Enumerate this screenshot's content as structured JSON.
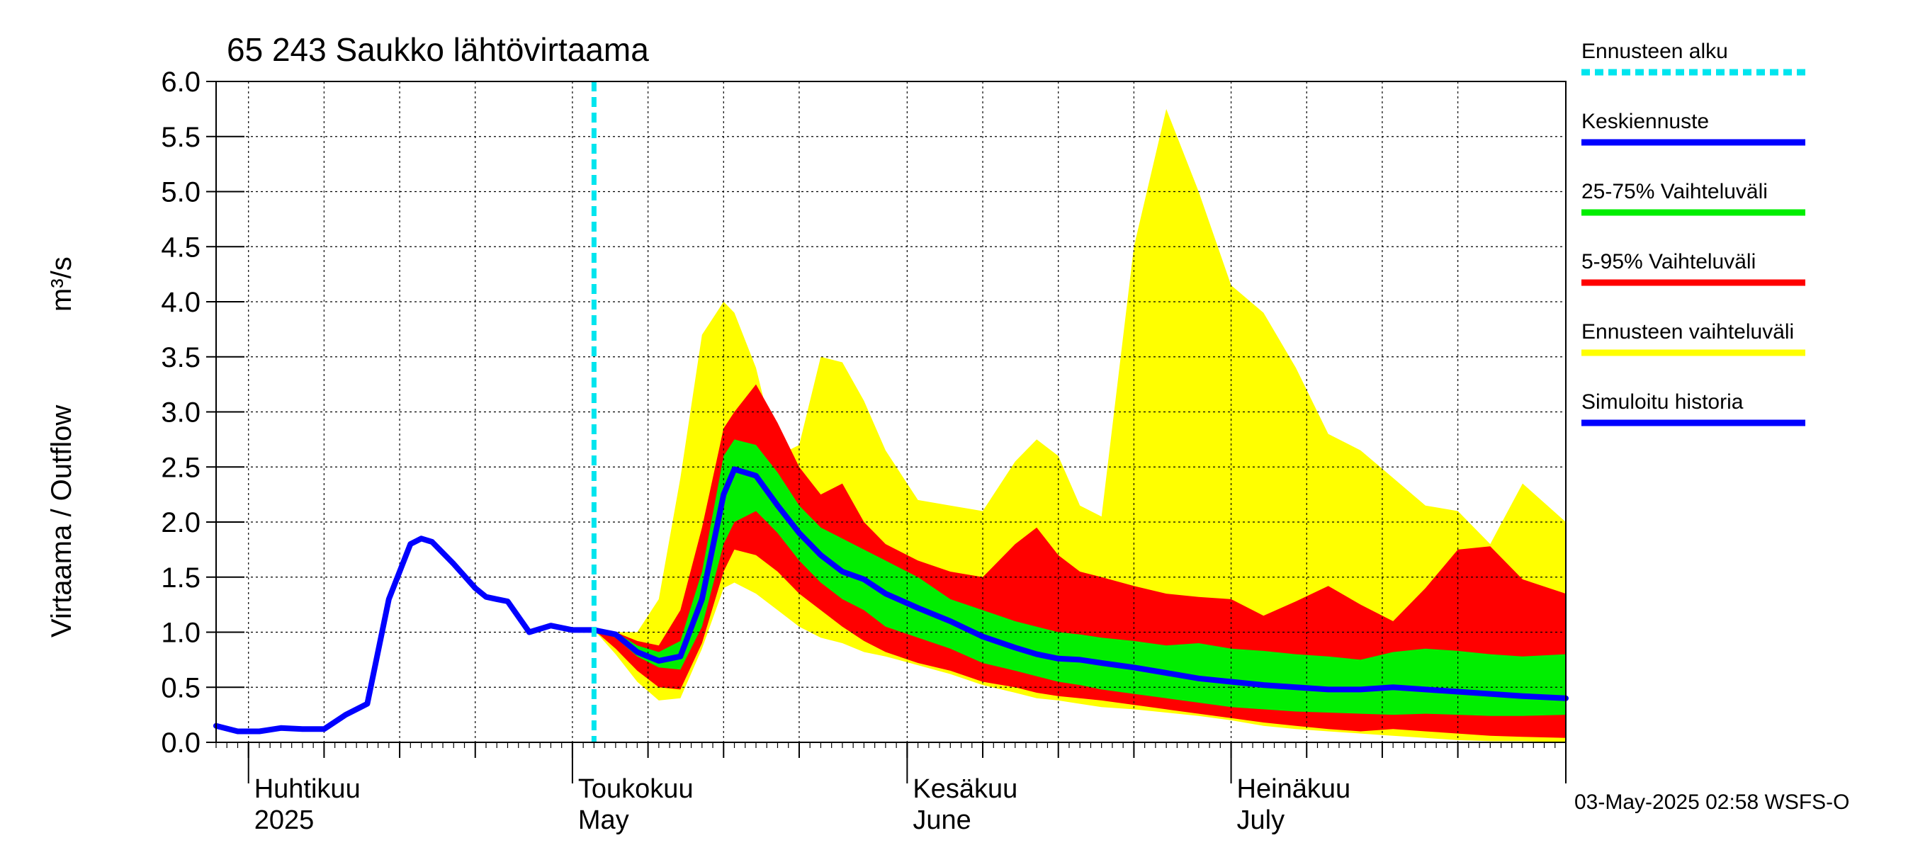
{
  "chart_data": {
    "type": "area",
    "title": "65 243 Saukko lähtövirtaama",
    "ylabel": "Virtaama / Outflow",
    "yunit": "m³/s",
    "ylim": [
      0,
      6
    ],
    "yticks": [
      "0.0",
      "0.5",
      "1.0",
      "1.5",
      "2.0",
      "2.5",
      "3.0",
      "3.5",
      "4.0",
      "4.5",
      "5.0",
      "5.5",
      "6.0"
    ],
    "xlim": [
      "2025-03-29",
      "2025-08-01"
    ],
    "x_tick_dates": [
      "2025-04-01",
      "2025-04-08",
      "2025-04-15",
      "2025-04-22",
      "2025-05-01",
      "2025-05-08",
      "2025-05-15",
      "2025-05-22",
      "2025-06-01",
      "2025-06-08",
      "2025-06-15",
      "2025-06-22",
      "2025-07-01",
      "2025-07-08",
      "2025-07-15",
      "2025-07-22",
      "2025-08-01"
    ],
    "month_boundaries": [
      "2025-04-01",
      "2025-05-01",
      "2025-06-01",
      "2025-07-01",
      "2025-08-01"
    ],
    "month_labels": [
      {
        "fi": "Huhtikuu",
        "en": "2025",
        "date": "2025-04-01"
      },
      {
        "fi": "Toukokuu",
        "en": "May",
        "date": "2025-05-01"
      },
      {
        "fi": "Kesäkuu",
        "en": "June",
        "date": "2025-06-01"
      },
      {
        "fi": "Heinäkuu",
        "en": "July",
        "date": "2025-07-01"
      }
    ],
    "forecast_start": "2025-05-03",
    "grid": true,
    "legend": [
      {
        "label": "Ennusteen alku",
        "color": "#00e5ee",
        "style": "dashed"
      },
      {
        "label": "Keskiennuste",
        "color": "#0000ff",
        "style": "solid"
      },
      {
        "label": "25-75% Vaihteluväli",
        "color": "#00ee00",
        "style": "solid"
      },
      {
        "label": "5-95% Vaihteluväli",
        "color": "#ff0000",
        "style": "solid"
      },
      {
        "label": "Ennusteen vaihteluväli",
        "color": "#ffff00",
        "style": "solid"
      },
      {
        "label": "Simuloitu historia",
        "color": "#0000ff",
        "style": "solid"
      }
    ],
    "legend_position": "right",
    "timestamp": "03-May-2025 02:58 WSFS-O",
    "colors": {
      "history": "#0000ff",
      "median": "#0000ff",
      "band_25_75": "#00ee00",
      "band_5_95": "#ff0000",
      "band_full": "#ffff00",
      "forecast_start": "#00e5ee"
    },
    "series": [
      {
        "name": "Simuloitu historia",
        "x": [
          "2025-03-29",
          "2025-03-31",
          "2025-04-02",
          "2025-04-04",
          "2025-04-06",
          "2025-04-08",
          "2025-04-10",
          "2025-04-12",
          "2025-04-14",
          "2025-04-16",
          "2025-04-17",
          "2025-04-18",
          "2025-04-20",
          "2025-04-22",
          "2025-04-23",
          "2025-04-24",
          "2025-04-25",
          "2025-04-27",
          "2025-04-29",
          "2025-05-01",
          "2025-05-03"
        ],
        "values": [
          0.15,
          0.1,
          0.1,
          0.13,
          0.12,
          0.12,
          0.25,
          0.35,
          1.3,
          1.8,
          1.85,
          1.82,
          1.62,
          1.4,
          1.32,
          1.3,
          1.28,
          1.0,
          1.06,
          1.02,
          1.02
        ]
      },
      {
        "name": "Keskiennuste",
        "x": [
          "2025-05-03",
          "2025-05-05",
          "2025-05-07",
          "2025-05-09",
          "2025-05-11",
          "2025-05-13",
          "2025-05-15",
          "2025-05-16",
          "2025-05-18",
          "2025-05-20",
          "2025-05-22",
          "2025-05-24",
          "2025-05-26",
          "2025-05-28",
          "2025-05-30",
          "2025-06-02",
          "2025-06-05",
          "2025-06-08",
          "2025-06-11",
          "2025-06-13",
          "2025-06-15",
          "2025-06-17",
          "2025-06-19",
          "2025-06-22",
          "2025-06-25",
          "2025-06-28",
          "2025-07-01",
          "2025-07-04",
          "2025-07-07",
          "2025-07-10",
          "2025-07-13",
          "2025-07-16",
          "2025-07-19",
          "2025-07-22",
          "2025-07-25",
          "2025-07-28",
          "2025-08-01"
        ],
        "values": [
          1.02,
          0.98,
          0.82,
          0.74,
          0.78,
          1.3,
          2.25,
          2.48,
          2.42,
          2.15,
          1.9,
          1.7,
          1.55,
          1.48,
          1.35,
          1.22,
          1.1,
          0.96,
          0.86,
          0.8,
          0.76,
          0.75,
          0.72,
          0.68,
          0.63,
          0.58,
          0.55,
          0.52,
          0.5,
          0.48,
          0.48,
          0.5,
          0.48,
          0.46,
          0.44,
          0.42,
          0.4
        ]
      },
      {
        "name": "25-75% Vaihteluväli",
        "x": [
          "2025-05-03",
          "2025-05-05",
          "2025-05-07",
          "2025-05-09",
          "2025-05-11",
          "2025-05-13",
          "2025-05-15",
          "2025-05-16",
          "2025-05-18",
          "2025-05-20",
          "2025-05-22",
          "2025-05-24",
          "2025-05-26",
          "2025-05-28",
          "2025-05-30",
          "2025-06-02",
          "2025-06-05",
          "2025-06-08",
          "2025-06-11",
          "2025-06-13",
          "2025-06-15",
          "2025-06-17",
          "2025-06-19",
          "2025-06-22",
          "2025-06-25",
          "2025-06-28",
          "2025-07-01",
          "2025-07-04",
          "2025-07-07",
          "2025-07-10",
          "2025-07-13",
          "2025-07-16",
          "2025-07-19",
          "2025-07-22",
          "2025-07-25",
          "2025-07-28",
          "2025-08-01"
        ],
        "lower": [
          1.02,
          0.95,
          0.78,
          0.68,
          0.66,
          1.05,
          1.8,
          2.0,
          2.1,
          1.9,
          1.65,
          1.45,
          1.3,
          1.2,
          1.05,
          0.95,
          0.85,
          0.72,
          0.65,
          0.6,
          0.55,
          0.52,
          0.48,
          0.44,
          0.4,
          0.36,
          0.32,
          0.3,
          0.28,
          0.27,
          0.26,
          0.25,
          0.26,
          0.25,
          0.24,
          0.24,
          0.25
        ],
        "upper": [
          1.02,
          1.0,
          0.88,
          0.82,
          0.92,
          1.55,
          2.6,
          2.75,
          2.7,
          2.45,
          2.15,
          1.95,
          1.85,
          1.75,
          1.65,
          1.5,
          1.3,
          1.2,
          1.1,
          1.05,
          1.0,
          0.98,
          0.95,
          0.92,
          0.88,
          0.9,
          0.85,
          0.83,
          0.8,
          0.78,
          0.75,
          0.82,
          0.85,
          0.83,
          0.8,
          0.78,
          0.8
        ]
      },
      {
        "name": "5-95% Vaihteluväli",
        "x": [
          "2025-05-03",
          "2025-05-05",
          "2025-05-07",
          "2025-05-09",
          "2025-05-11",
          "2025-05-13",
          "2025-05-15",
          "2025-05-16",
          "2025-05-18",
          "2025-05-20",
          "2025-05-22",
          "2025-05-24",
          "2025-05-26",
          "2025-05-28",
          "2025-05-30",
          "2025-06-02",
          "2025-06-05",
          "2025-06-08",
          "2025-06-11",
          "2025-06-13",
          "2025-06-15",
          "2025-06-17",
          "2025-06-19",
          "2025-06-22",
          "2025-06-25",
          "2025-06-28",
          "2025-07-01",
          "2025-07-04",
          "2025-07-07",
          "2025-07-10",
          "2025-07-13",
          "2025-07-16",
          "2025-07-19",
          "2025-07-22",
          "2025-07-25",
          "2025-07-28",
          "2025-08-01"
        ],
        "lower": [
          1.02,
          0.85,
          0.65,
          0.5,
          0.48,
          0.9,
          1.55,
          1.75,
          1.7,
          1.55,
          1.35,
          1.2,
          1.05,
          0.92,
          0.82,
          0.72,
          0.65,
          0.55,
          0.5,
          0.45,
          0.42,
          0.4,
          0.38,
          0.34,
          0.3,
          0.26,
          0.22,
          0.18,
          0.15,
          0.12,
          0.1,
          0.12,
          0.1,
          0.08,
          0.06,
          0.05,
          0.04
        ],
        "upper": [
          1.02,
          1.0,
          0.92,
          0.88,
          1.2,
          1.95,
          2.85,
          3.0,
          3.25,
          2.9,
          2.5,
          2.25,
          2.35,
          2.0,
          1.8,
          1.65,
          1.55,
          1.5,
          1.8,
          1.95,
          1.7,
          1.55,
          1.5,
          1.42,
          1.35,
          1.32,
          1.3,
          1.15,
          1.28,
          1.42,
          1.25,
          1.1,
          1.4,
          1.75,
          1.78,
          1.48,
          1.35
        ]
      },
      {
        "name": "Ennusteen vaihteluväli",
        "x": [
          "2025-05-03",
          "2025-05-05",
          "2025-05-07",
          "2025-05-09",
          "2025-05-11",
          "2025-05-13",
          "2025-05-15",
          "2025-05-16",
          "2025-05-18",
          "2025-05-20",
          "2025-05-22",
          "2025-05-24",
          "2025-05-26",
          "2025-05-28",
          "2025-05-30",
          "2025-06-02",
          "2025-06-05",
          "2025-06-08",
          "2025-06-11",
          "2025-06-13",
          "2025-06-15",
          "2025-06-17",
          "2025-06-19",
          "2025-06-22",
          "2025-06-25",
          "2025-06-28",
          "2025-07-01",
          "2025-07-04",
          "2025-07-07",
          "2025-07-10",
          "2025-07-13",
          "2025-07-16",
          "2025-07-19",
          "2025-07-22",
          "2025-07-25",
          "2025-07-28",
          "2025-08-01"
        ],
        "lower": [
          1.02,
          0.8,
          0.55,
          0.38,
          0.4,
          0.85,
          1.4,
          1.45,
          1.35,
          1.2,
          1.05,
          0.95,
          0.9,
          0.82,
          0.78,
          0.7,
          0.62,
          0.52,
          0.45,
          0.4,
          0.38,
          0.35,
          0.32,
          0.3,
          0.27,
          0.24,
          0.2,
          0.15,
          0.12,
          0.1,
          0.08,
          0.06,
          0.04,
          0.02,
          0.01,
          0.01,
          0.0
        ],
        "upper": [
          1.02,
          1.0,
          1.0,
          1.3,
          2.4,
          3.7,
          4.0,
          3.9,
          3.4,
          2.6,
          2.7,
          3.5,
          3.45,
          3.1,
          2.65,
          2.2,
          2.15,
          2.1,
          2.55,
          2.75,
          2.6,
          2.15,
          2.05,
          4.5,
          5.75,
          5.0,
          4.15,
          3.9,
          3.4,
          2.8,
          2.65,
          2.4,
          2.15,
          2.1,
          1.8,
          2.35,
          2.0
        ]
      }
    ]
  }
}
